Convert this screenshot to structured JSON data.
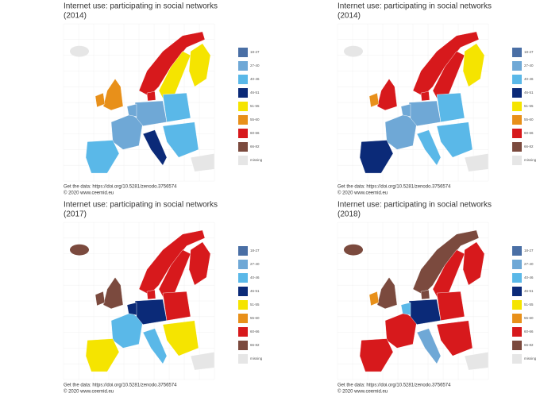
{
  "legend": {
    "labels": [
      "18-27",
      "27-40",
      "40-46",
      "46-51",
      "51-55",
      "55-60",
      "60-66",
      "66-82",
      "missing"
    ],
    "colors": [
      "#4a6fa5",
      "#6fa8d6",
      "#5ab8e8",
      "#0b2a78",
      "#f5e400",
      "#e8901a",
      "#d7191c",
      "#7b4a3e",
      "#e6e6e6"
    ]
  },
  "panels": [
    {
      "title": "Internet use: participating in social networks",
      "year": "(2014)",
      "source": "Get the data: https://doi.org/10.5281/zenodo.3756574",
      "copyright": "© 2020 www.ceemid.eu"
    },
    {
      "title": "Internet use: participating in social networks",
      "year": "(2014)",
      "source": "Get the data: https://doi.org/10.5281/zenodo.3756574",
      "copyright": "© 2020 www.ceemid.eu"
    },
    {
      "title": "Internet use: participating in social networks",
      "year": "(2017)",
      "source": "Get the data: https://doi.org/10.5281/zenodo.3756574",
      "copyright": "© 2020 www.ceemid.eu"
    },
    {
      "title": "Internet use: participating in social networks",
      "year": "(2018)",
      "source": "Get the data: https://doi.org/10.5281/zenodo.3756574",
      "copyright": "© 2020 www.ceemid.eu"
    }
  ]
}
